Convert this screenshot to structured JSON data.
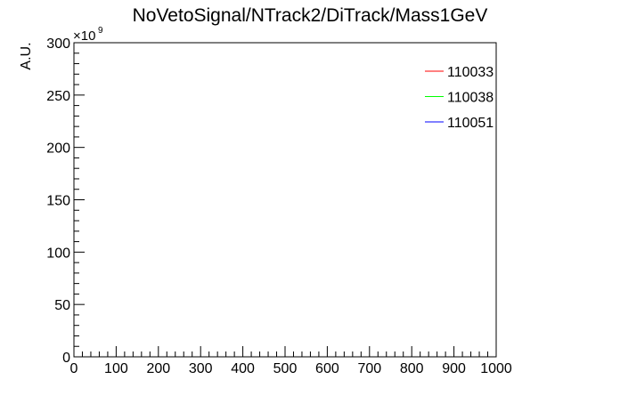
{
  "chart_data": {
    "type": "line",
    "title": "NoVetoSignal/NTrack2/DiTrack/Mass1GeV",
    "xlabel": "",
    "ylabel": "A.U.",
    "xlim": [
      0,
      1000
    ],
    "ylim": [
      0,
      300
    ],
    "x_ticks": [
      "0",
      "100",
      "200",
      "300",
      "400",
      "500",
      "600",
      "700",
      "800",
      "900",
      "1000"
    ],
    "y_ticks": [
      "0",
      "50",
      "100",
      "150",
      "200",
      "250",
      "300"
    ],
    "y_multiplier": {
      "base": "×10",
      "exponent": "9"
    },
    "grid": false,
    "legend_position": "top-right",
    "series": [
      {
        "name": "110033",
        "color": "#ff0000",
        "x": [
          0,
          1000
        ],
        "y": [
          0,
          0
        ]
      },
      {
        "name": "110038",
        "color": "#00ff00",
        "x": [
          0,
          1000
        ],
        "y": [
          0,
          0
        ]
      },
      {
        "name": "110051",
        "color": "#0000ff",
        "x": [
          0,
          1000
        ],
        "y": [
          0,
          0
        ]
      }
    ]
  }
}
